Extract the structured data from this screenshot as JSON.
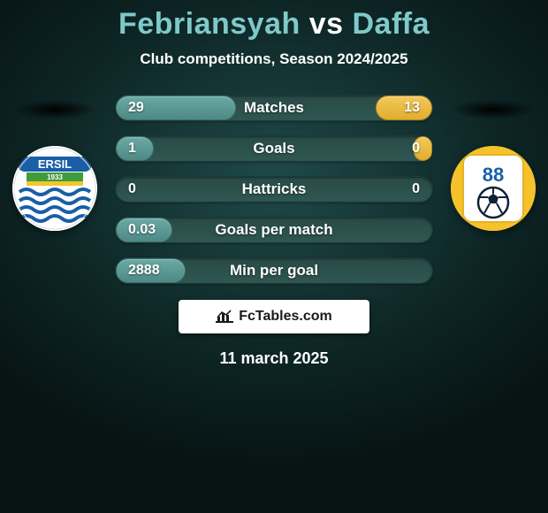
{
  "title": {
    "player1": "Febriansyah",
    "vs": "vs",
    "player2": "Daffa"
  },
  "subtitle": "Club competitions, Season 2024/2025",
  "stats": [
    {
      "label": "Matches",
      "left_val": "29",
      "right_val": "13",
      "left_pct": 38,
      "right_pct": 18
    },
    {
      "label": "Goals",
      "left_val": "1",
      "right_val": "0",
      "left_pct": 12,
      "right_pct": 6
    },
    {
      "label": "Hattricks",
      "left_val": "0",
      "right_val": "0",
      "left_pct": 0,
      "right_pct": 0
    },
    {
      "label": "Goals per match",
      "left_val": "0.03",
      "right_val": "",
      "left_pct": 18,
      "right_pct": 0
    },
    {
      "label": "Min per goal",
      "left_val": "2888",
      "right_val": "",
      "left_pct": 22,
      "right_pct": 0
    }
  ],
  "footer_badge": "FcTables.com",
  "date": "11 march 2025",
  "colors": {
    "background_gradient_inner": "#1f4a4a",
    "background_gradient_outer": "#071414",
    "name_color": "#7fc9c9",
    "bar_track": "#305752",
    "bar_left": "#4e8a85",
    "bar_right": "#e0ad2e",
    "text": "#ffffff",
    "badge_bg": "#ffffff",
    "badge_text": "#1a1a1a"
  },
  "logo_left": {
    "top_text": "ERSIL",
    "year": "1933",
    "outer_ring": "#fefefe",
    "banner": "#1a5ea8",
    "mid_band": "#3f9b3c",
    "lower_band": "#f2c72b",
    "waves_bg": "#ffffff",
    "waves": "#1a5ea8"
  },
  "logo_right": {
    "outer": "#f6c22b",
    "panel": "#ffffff",
    "number": "88",
    "number_color": "#1a5ea8",
    "ball_outline": "#0d2238"
  }
}
